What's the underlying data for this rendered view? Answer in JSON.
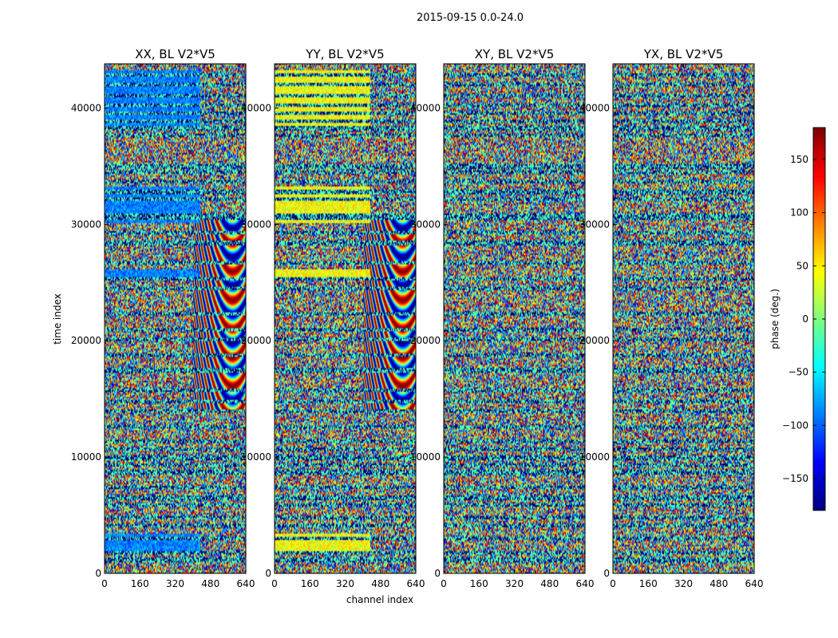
{
  "chart_data": {
    "type": "heatmap",
    "suptitle": "2015-09-15 0.0-24.0",
    "xlabel": "channel index",
    "ylabel": "time index",
    "xlim": [
      0,
      640
    ],
    "ylim": [
      0,
      43800
    ],
    "xticks": [
      0,
      160,
      320,
      480,
      640
    ],
    "yticks": [
      0,
      10000,
      20000,
      30000,
      40000
    ],
    "panels": [
      {
        "title": "XX, BL V2*V5",
        "pol": "XX"
      },
      {
        "title": "YY, BL V2*V5",
        "pol": "YY"
      },
      {
        "title": "XY, BL V2*V5",
        "pol": "XY"
      },
      {
        "title": "YX, BL V2*V5",
        "pol": "YX"
      }
    ],
    "colorbar": {
      "label": "phase (deg.)",
      "colormap": "jet",
      "vmin": -180,
      "vmax": 180,
      "ticks": [
        -150,
        -100,
        -50,
        0,
        50,
        100,
        150
      ],
      "tick_labels": [
        "−150",
        "−100",
        "−50",
        "0",
        "50",
        "100",
        "150"
      ]
    },
    "layout": {
      "colors": {
        "frame": "#000000",
        "background": "#ffffff"
      }
    }
  }
}
